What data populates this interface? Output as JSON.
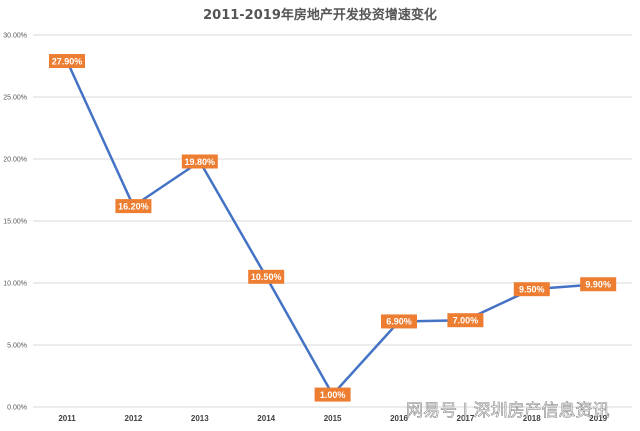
{
  "chart_data": {
    "type": "line",
    "title": "2011-2019年房地产开发投资增速变化",
    "categories": [
      "2011",
      "2012",
      "2013",
      "2014",
      "2015",
      "2016",
      "2017",
      "2018",
      "2019"
    ],
    "series": [
      {
        "values": [
          27.9,
          16.2,
          19.8,
          10.5,
          1.0,
          6.9,
          7.0,
          9.5,
          9.9
        ],
        "labels": [
          "27.90%",
          "16.20%",
          "19.80%",
          "10.50%",
          "1.00%",
          "6.90%",
          "7.00%",
          "9.50%",
          "9.90%"
        ],
        "color": "#4472c4",
        "label_color": "#ed7d31"
      }
    ],
    "y_ticks": [
      "0.00%",
      "5.00%",
      "10.00%",
      "15.00%",
      "20.00%",
      "25.00%",
      "30.00%"
    ],
    "ylim": [
      0,
      30
    ],
    "grid": true
  },
  "watermark": "网易号 | 深圳房产信息资讯"
}
